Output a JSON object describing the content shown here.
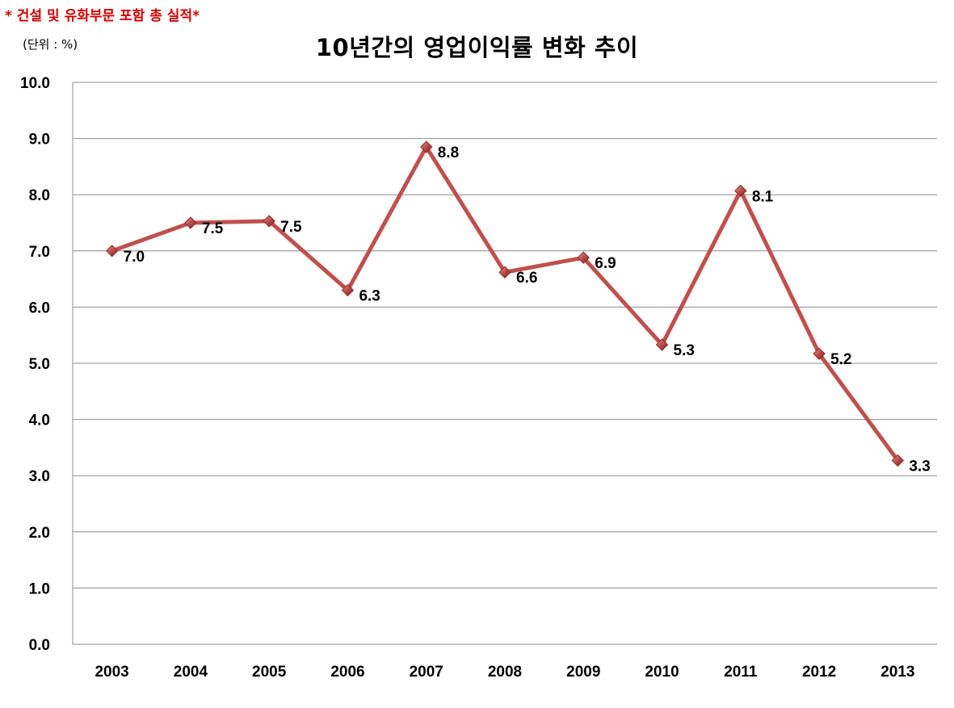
{
  "note": "* 건설 및 유화부문 포함 총 실적*",
  "unit": "(단위 : %)",
  "chart_data": {
    "type": "line",
    "title": "10년간의 영업이익률 변화 추이",
    "xlabel": "",
    "ylabel": "",
    "categories": [
      "2003",
      "2004",
      "2005",
      "2006",
      "2007",
      "2008",
      "2009",
      "2010",
      "2011",
      "2012",
      "2013"
    ],
    "series": [
      {
        "values": [
          7.0,
          7.5,
          7.53,
          6.3,
          8.85,
          6.62,
          6.88,
          5.33,
          8.07,
          5.17,
          3.27
        ],
        "labels": [
          "7.0",
          "7.5",
          "7.5",
          "6.3",
          "8.8",
          "6.6",
          "6.9",
          "5.3",
          "8.1",
          "5.2",
          "3.3"
        ]
      }
    ],
    "ylim": [
      0,
      10
    ],
    "yticks": [
      "0.0",
      "1.0",
      "2.0",
      "3.0",
      "4.0",
      "5.0",
      "6.0",
      "7.0",
      "8.0",
      "9.0",
      "10.0"
    ],
    "grid": true,
    "legend": "none",
    "colors": {
      "line": "#c0504d",
      "marker": "#c0504d",
      "marker_dark": "#8b2a27",
      "grid": "#8c8c8c",
      "note": "#d40000"
    }
  }
}
